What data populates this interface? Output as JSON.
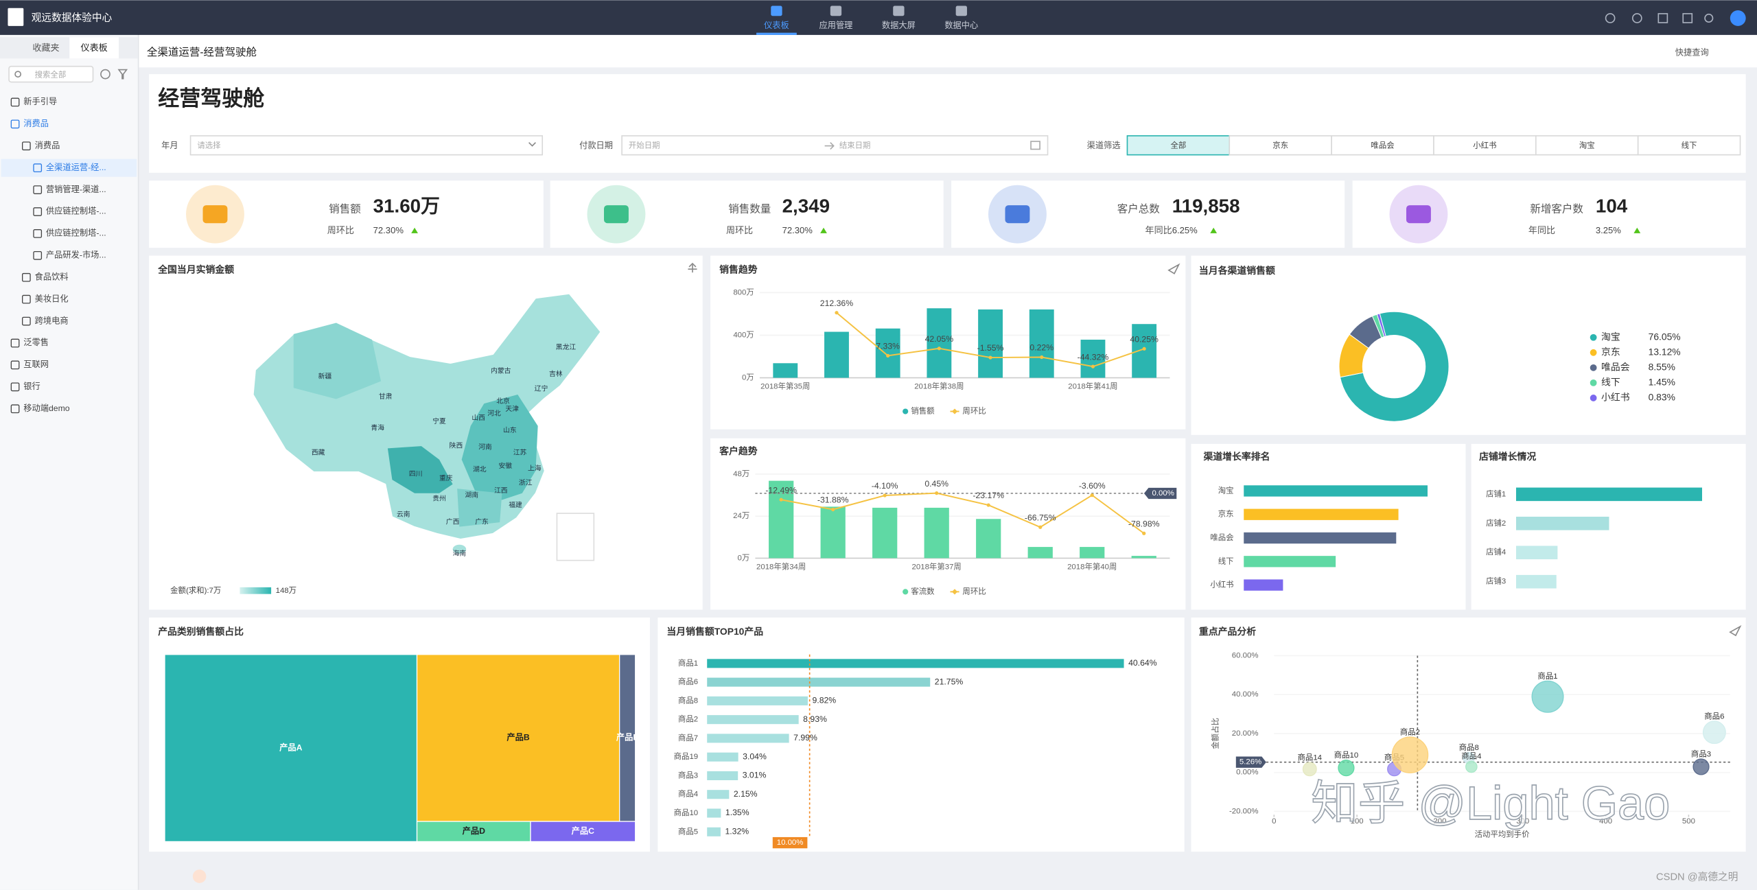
{
  "topbar": {
    "brand": "观远数据体验中心",
    "nav": [
      "仪表板",
      "应用管理",
      "数据大屏",
      "数据中心"
    ],
    "active": 0
  },
  "sidebar": {
    "tabs": [
      "收藏夹",
      "仪表板"
    ],
    "active_tab": 1,
    "search": "搜索全部",
    "tree": [
      {
        "label": "新手引导",
        "level": 0
      },
      {
        "label": "消费品",
        "level": 0,
        "active": true
      },
      {
        "label": "消费品",
        "level": 1
      },
      {
        "label": "全渠道运营-经...",
        "level": 2,
        "active": true
      },
      {
        "label": "营销管理-渠道...",
        "level": 2
      },
      {
        "label": "供应链控制塔-...",
        "level": 2
      },
      {
        "label": "供应链控制塔-...",
        "level": 2
      },
      {
        "label": "产品研发-市场...",
        "level": 2
      },
      {
        "label": "食品饮料",
        "level": 1
      },
      {
        "label": "美妆日化",
        "level": 1
      },
      {
        "label": "跨境电商",
        "level": 1
      },
      {
        "label": "泛零售",
        "level": 0
      },
      {
        "label": "互联网",
        "level": 0
      },
      {
        "label": "银行",
        "level": 0
      },
      {
        "label": "移动端demo",
        "level": 0
      }
    ]
  },
  "header": {
    "breadcrumb": "全渠道运营-经营驾驶舱",
    "quick_query": "快捷查询",
    "title": "经营驾驶舱"
  },
  "filters": {
    "month_label": "年月",
    "month_placeholder": "请选择",
    "date_label": "付款日期",
    "date_start": "开始日期",
    "date_end": "结束日期",
    "channel_label": "渠道筛选",
    "channels": [
      "全部",
      "京东",
      "唯品会",
      "小红书",
      "淘宝",
      "线下"
    ],
    "active": 0
  },
  "kpis": [
    {
      "label": "销售额",
      "value": "31.60万",
      "compare_label": "周环比",
      "compare": "72.30%",
      "color": "#f5a623"
    },
    {
      "label": "销售数量",
      "value": "2,349",
      "compare_label": "周环比",
      "compare": "72.30%",
      "color": "#3dbf8a"
    },
    {
      "label": "客户总数",
      "value": "119,858",
      "compare_label": "年同比",
      "compare": "6.25%",
      "color": "#4a7bdc"
    },
    {
      "label": "新增客户数",
      "value": "104",
      "compare_label": "年同比",
      "compare": "3.25%",
      "color": "#9b59e0"
    }
  ],
  "chart_data": [
    {
      "type": "map",
      "title": "全国当月实销金额",
      "regions": [
        "新疆",
        "西藏",
        "青海",
        "甘肃",
        "内蒙古",
        "黑龙江",
        "吉林",
        "辽宁",
        "宁夏",
        "陕西",
        "山西",
        "北京",
        "天津",
        "河北",
        "山东",
        "河南",
        "江苏",
        "安徽",
        "湖北",
        "上海",
        "四川",
        "重庆",
        "浙江",
        "湖南",
        "江西",
        "贵州",
        "福建",
        "云南",
        "广西",
        "广东",
        "海南"
      ],
      "legend": {
        "label": "金额(求和):7万",
        "max_label": "148万"
      }
    },
    {
      "type": "bar-line",
      "title": "销售趋势",
      "categories": [
        "2018年第35周",
        null,
        null,
        "2018年第38周",
        null,
        null,
        "2018年第41周",
        null
      ],
      "series": [
        {
          "name": "销售额",
          "color": "#2bb5b0",
          "values": [
            137,
            432,
            463,
            653,
            642,
            642,
            358,
            505
          ]
        },
        {
          "name": "周环比",
          "color": "#f5c242",
          "axis": "y2",
          "values": [
            null,
            212.36,
            7.33,
            42.05,
            -1.55,
            0.22,
            -44.32,
            40.25
          ],
          "value_labels": [
            null,
            "212.36%",
            "7.33%",
            "42.05%",
            "-1.55%",
            "0.22%",
            "-44.32%",
            "40.25%"
          ]
        }
      ],
      "ylim": [
        0,
        800
      ],
      "yticks": [
        {
          "value": 0,
          "label": "0万"
        },
        {
          "value": 400,
          "label": "400万"
        },
        {
          "value": 800,
          "label": "800万"
        }
      ],
      "y2lim": [
        -98,
        308
      ]
    },
    {
      "type": "bar-line",
      "title": "客户趋势",
      "categories": [
        "2018年第34周",
        null,
        null,
        "2018年第37周",
        null,
        null,
        "2018年第40周",
        null
      ],
      "series": [
        {
          "name": "客流数",
          "color": "#5fd9a4",
          "values": [
            44.2,
            29.4,
            28.8,
            28.8,
            22.4,
            6.4,
            6.4,
            1.3
          ]
        },
        {
          "name": "周环比",
          "color": "#f5c242",
          "axis": "y2",
          "values": [
            -12.49,
            -31.88,
            -4.1,
            0.45,
            -23.17,
            -66.75,
            -3.6,
            -78.98
          ],
          "value_labels": [
            "-12.49%",
            "-31.88%",
            "-4.10%",
            "0.45%",
            "-23.17%",
            "-66.75%",
            "-3.60%",
            "-78.98%"
          ]
        }
      ],
      "ylim": [
        0,
        48
      ],
      "yticks": [
        {
          "value": 0,
          "label": "0万"
        },
        {
          "value": 24,
          "label": "24万"
        },
        {
          "value": 48,
          "label": "48万"
        }
      ],
      "y2lim": [
        -128,
        38
      ],
      "reference_line": {
        "axis": "y2",
        "value": 0,
        "label": "0.00%"
      }
    },
    {
      "type": "donut",
      "title": "当月各渠道销售额",
      "categories": [
        "淘宝",
        "京东",
        "唯品会",
        "线下",
        "小红书"
      ],
      "values": [
        76.05,
        13.12,
        8.55,
        1.45,
        0.83
      ],
      "value_labels": [
        "76.05%",
        "13.12%",
        "8.55%",
        "1.45%",
        "0.83%"
      ],
      "colors": [
        "#2bb5b0",
        "#fbbf24",
        "#5b6b8c",
        "#5fd9a4",
        "#7b68ee"
      ]
    },
    {
      "type": "hbar",
      "title": "渠道增长率排名",
      "categories": [
        "淘宝",
        "京东",
        "唯品会",
        "线下",
        "小红书"
      ],
      "values": [
        164,
        138,
        136,
        82,
        35
      ],
      "colors": [
        "#2bb5b0",
        "#fbbf24",
        "#5b6b8c",
        "#5fd9a4",
        "#7b68ee"
      ]
    },
    {
      "type": "hbar",
      "title": "店铺增长情况",
      "categories": [
        "店铺1",
        "店铺2",
        "店铺4",
        "店铺3"
      ],
      "values": [
        166,
        83,
        37,
        36
      ],
      "colors": [
        "#2bb5b0",
        "#a8e0df",
        "#c2ebea",
        "#c2ebea"
      ]
    },
    {
      "type": "treemap",
      "title": "产品类别销售额占比",
      "categories": [
        "产品A",
        "产品B",
        "产品E",
        "产品D",
        "产品C"
      ],
      "values": [
        53.6,
        38.4,
        3.0,
        2.6,
        2.4
      ],
      "colors": [
        "#2bb5b0",
        "#fbbf24",
        "#5b6b8c",
        "#5fd9a4",
        "#7b68ee"
      ]
    },
    {
      "type": "hbar",
      "title": "当月销售额TOP10产品",
      "categories": [
        "商品1",
        "商品6",
        "商品8",
        "商品2",
        "商品7",
        "商品19",
        "商品3",
        "商品4",
        "商品10",
        "商品5"
      ],
      "values": [
        40.64,
        21.75,
        9.82,
        8.93,
        7.99,
        3.04,
        3.01,
        2.15,
        1.35,
        1.32
      ],
      "value_labels": [
        "40.64%",
        "21.75%",
        "9.82%",
        "8.93%",
        "7.99%",
        "3.04%",
        "3.01%",
        "2.15%",
        "1.35%",
        "1.32%"
      ],
      "colors": [
        "#2bb5b0",
        "#8ad3d1",
        "#a8e0df",
        "#a8e0df",
        "#a8e0df",
        "#a8e0df",
        "#a8e0df",
        "#a8e0df",
        "#a8e0df",
        "#a8e0df"
      ],
      "reference_line": {
        "value": 10,
        "label": "10.00%"
      }
    },
    {
      "type": "bubble",
      "title": "重点产品分析",
      "x_label": "活动平均到手价",
      "y_label": "金额占比",
      "labels": [
        "商品1",
        "商品6",
        "商品3",
        "商品14",
        "商品10",
        "商品5",
        "商品2",
        "商品8",
        "商品4"
      ],
      "x": [
        330,
        531,
        515,
        43,
        87,
        145,
        164,
        235,
        238
      ],
      "values": [
        38.9,
        20.6,
        2.9,
        1.7,
        2.3,
        1.7,
        9.0,
        7.4,
        2.9
      ],
      "sizes": [
        196,
        100,
        49,
        36,
        49,
        36,
        256,
        25,
        25
      ],
      "colors": [
        "#7fd3d0",
        "#d3eeee",
        "#5b6b8c",
        "#e5e8c0",
        "#5fd9a4",
        "#9b8cf0",
        "#fcd27a",
        "#cfe8ee",
        "#a9e8c8"
      ],
      "xlim": [
        0,
        550
      ],
      "xticks": [
        0,
        100,
        200,
        300,
        400,
        500
      ],
      "ylim": [
        -20,
        60
      ],
      "yticks": [
        {
          "value": -20,
          "label": "-20.00%"
        },
        {
          "value": 0,
          "label": "0.00%"
        },
        {
          "value": 20,
          "label": "20.00%"
        },
        {
          "value": 40,
          "label": "40.00%"
        },
        {
          "value": 60,
          "label": "60.00%"
        }
      ],
      "hline": {
        "value": 5.26,
        "label": "5.26%"
      },
      "vline": {
        "value": 173
      }
    }
  ],
  "watermarks": [
    "知乎 @Light Gao",
    "CSDN @高德之明"
  ]
}
